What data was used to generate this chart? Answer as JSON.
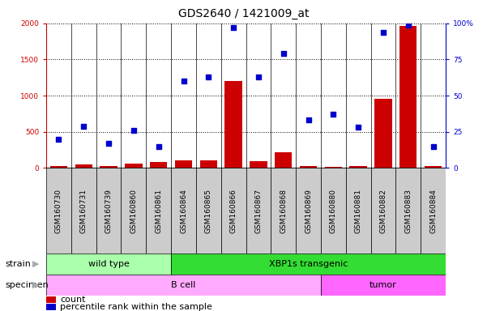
{
  "title": "GDS2640 / 1421009_at",
  "samples": [
    "GSM160730",
    "GSM160731",
    "GSM160739",
    "GSM160860",
    "GSM160861",
    "GSM160864",
    "GSM160865",
    "GSM160866",
    "GSM160867",
    "GSM160868",
    "GSM160869",
    "GSM160880",
    "GSM160881",
    "GSM160882",
    "GSM160883",
    "GSM160884"
  ],
  "counts": [
    30,
    50,
    25,
    55,
    80,
    100,
    110,
    1200,
    90,
    220,
    25,
    20,
    25,
    960,
    1960,
    25
  ],
  "percentiles": [
    20,
    29,
    17,
    26,
    15,
    60,
    63,
    97,
    63,
    79,
    33,
    37,
    28,
    94,
    99,
    15
  ],
  "strain_groups": [
    {
      "label": "wild type",
      "start": 0,
      "end": 5,
      "color": "#AAFFAA"
    },
    {
      "label": "XBP1s transgenic",
      "start": 5,
      "end": 16,
      "color": "#33DD33"
    }
  ],
  "specimen_groups": [
    {
      "label": "B cell",
      "start": 0,
      "end": 11,
      "color": "#FFAAFF"
    },
    {
      "label": "tumor",
      "start": 11,
      "end": 16,
      "color": "#FF66FF"
    }
  ],
  "bar_color": "#CC0000",
  "dot_color": "#0000CC",
  "left_axis_color": "#CC0000",
  "right_axis_color": "#0000CC",
  "ylim_left": [
    0,
    2000
  ],
  "ylim_right": [
    0,
    100
  ],
  "yticks_left": [
    0,
    500,
    1000,
    1500,
    2000
  ],
  "yticks_right": [
    0,
    25,
    50,
    75,
    100
  ],
  "plot_bg": "#FFFFFF",
  "label_bg": "#CCCCCC",
  "grid_color": "black",
  "title_fontsize": 10,
  "tick_fontsize": 6.5,
  "label_fontsize": 8,
  "legend_fontsize": 8,
  "strain_label_fontsize": 8,
  "specimen_label_fontsize": 8
}
